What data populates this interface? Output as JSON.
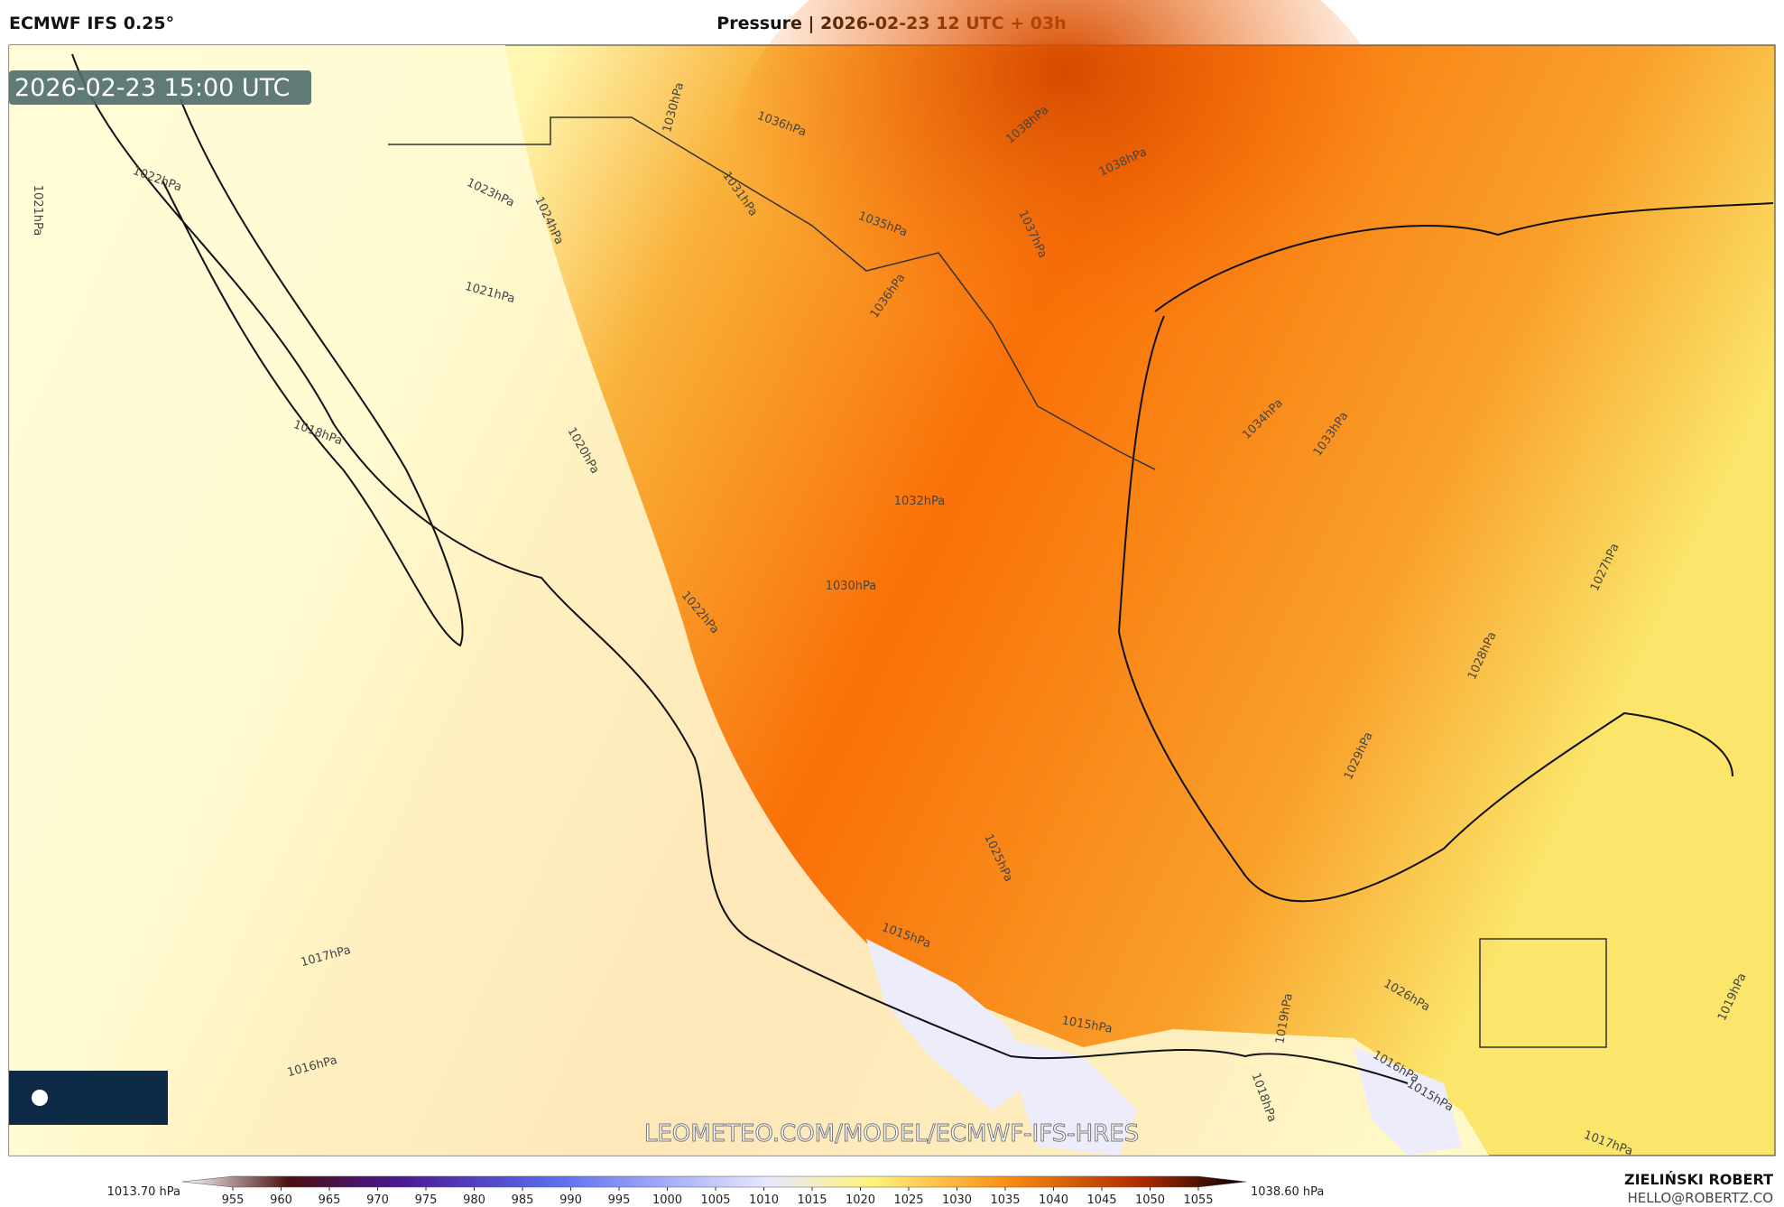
{
  "header": {
    "model": "ECMWF IFS 0.25°",
    "title": "Pressure | 2026-02-23 12 UTC + 03h"
  },
  "map": {
    "timestamp": "2026-02-23 15:00 UTC",
    "watermark": "LEOMETEO.COM/MODEL/ECMWF-IFS-HRES",
    "contour_labels": [
      "1021hPa",
      "1022hPa",
      "1023hPa",
      "1024hPa",
      "1021hPa",
      "1030hPa",
      "1036hPa",
      "1038hPa",
      "1038hPa",
      "1031hPa",
      "1035hPa",
      "1037hPa",
      "1036hPa",
      "1018hPa",
      "1020hPa",
      "1032hPa",
      "1034hPa",
      "1033hPa",
      "1030hPa",
      "1022hPa",
      "1027hPa",
      "1028hPa",
      "1029hPa",
      "1025hPa",
      "1015hPa",
      "1017hPa",
      "1016hPa",
      "1015hPa",
      "1019hPa",
      "1018hPa",
      "1026hPa",
      "1016hPa",
      "1015hPa",
      "1019hPa",
      "1017hPa"
    ]
  },
  "colorbar": {
    "min_label": "1013.70 hPa",
    "max_label": "1038.60 hPa",
    "range": [
      955,
      1055
    ],
    "ticks": [
      955,
      960,
      965,
      970,
      975,
      980,
      985,
      990,
      995,
      1000,
      1005,
      1010,
      1015,
      1020,
      1025,
      1030,
      1035,
      1040,
      1045,
      1050,
      1055
    ]
  },
  "footer": {
    "author": "ZIELIŃSKI ROBERT",
    "email": "HELLO@ROBERTZ.CO"
  }
}
